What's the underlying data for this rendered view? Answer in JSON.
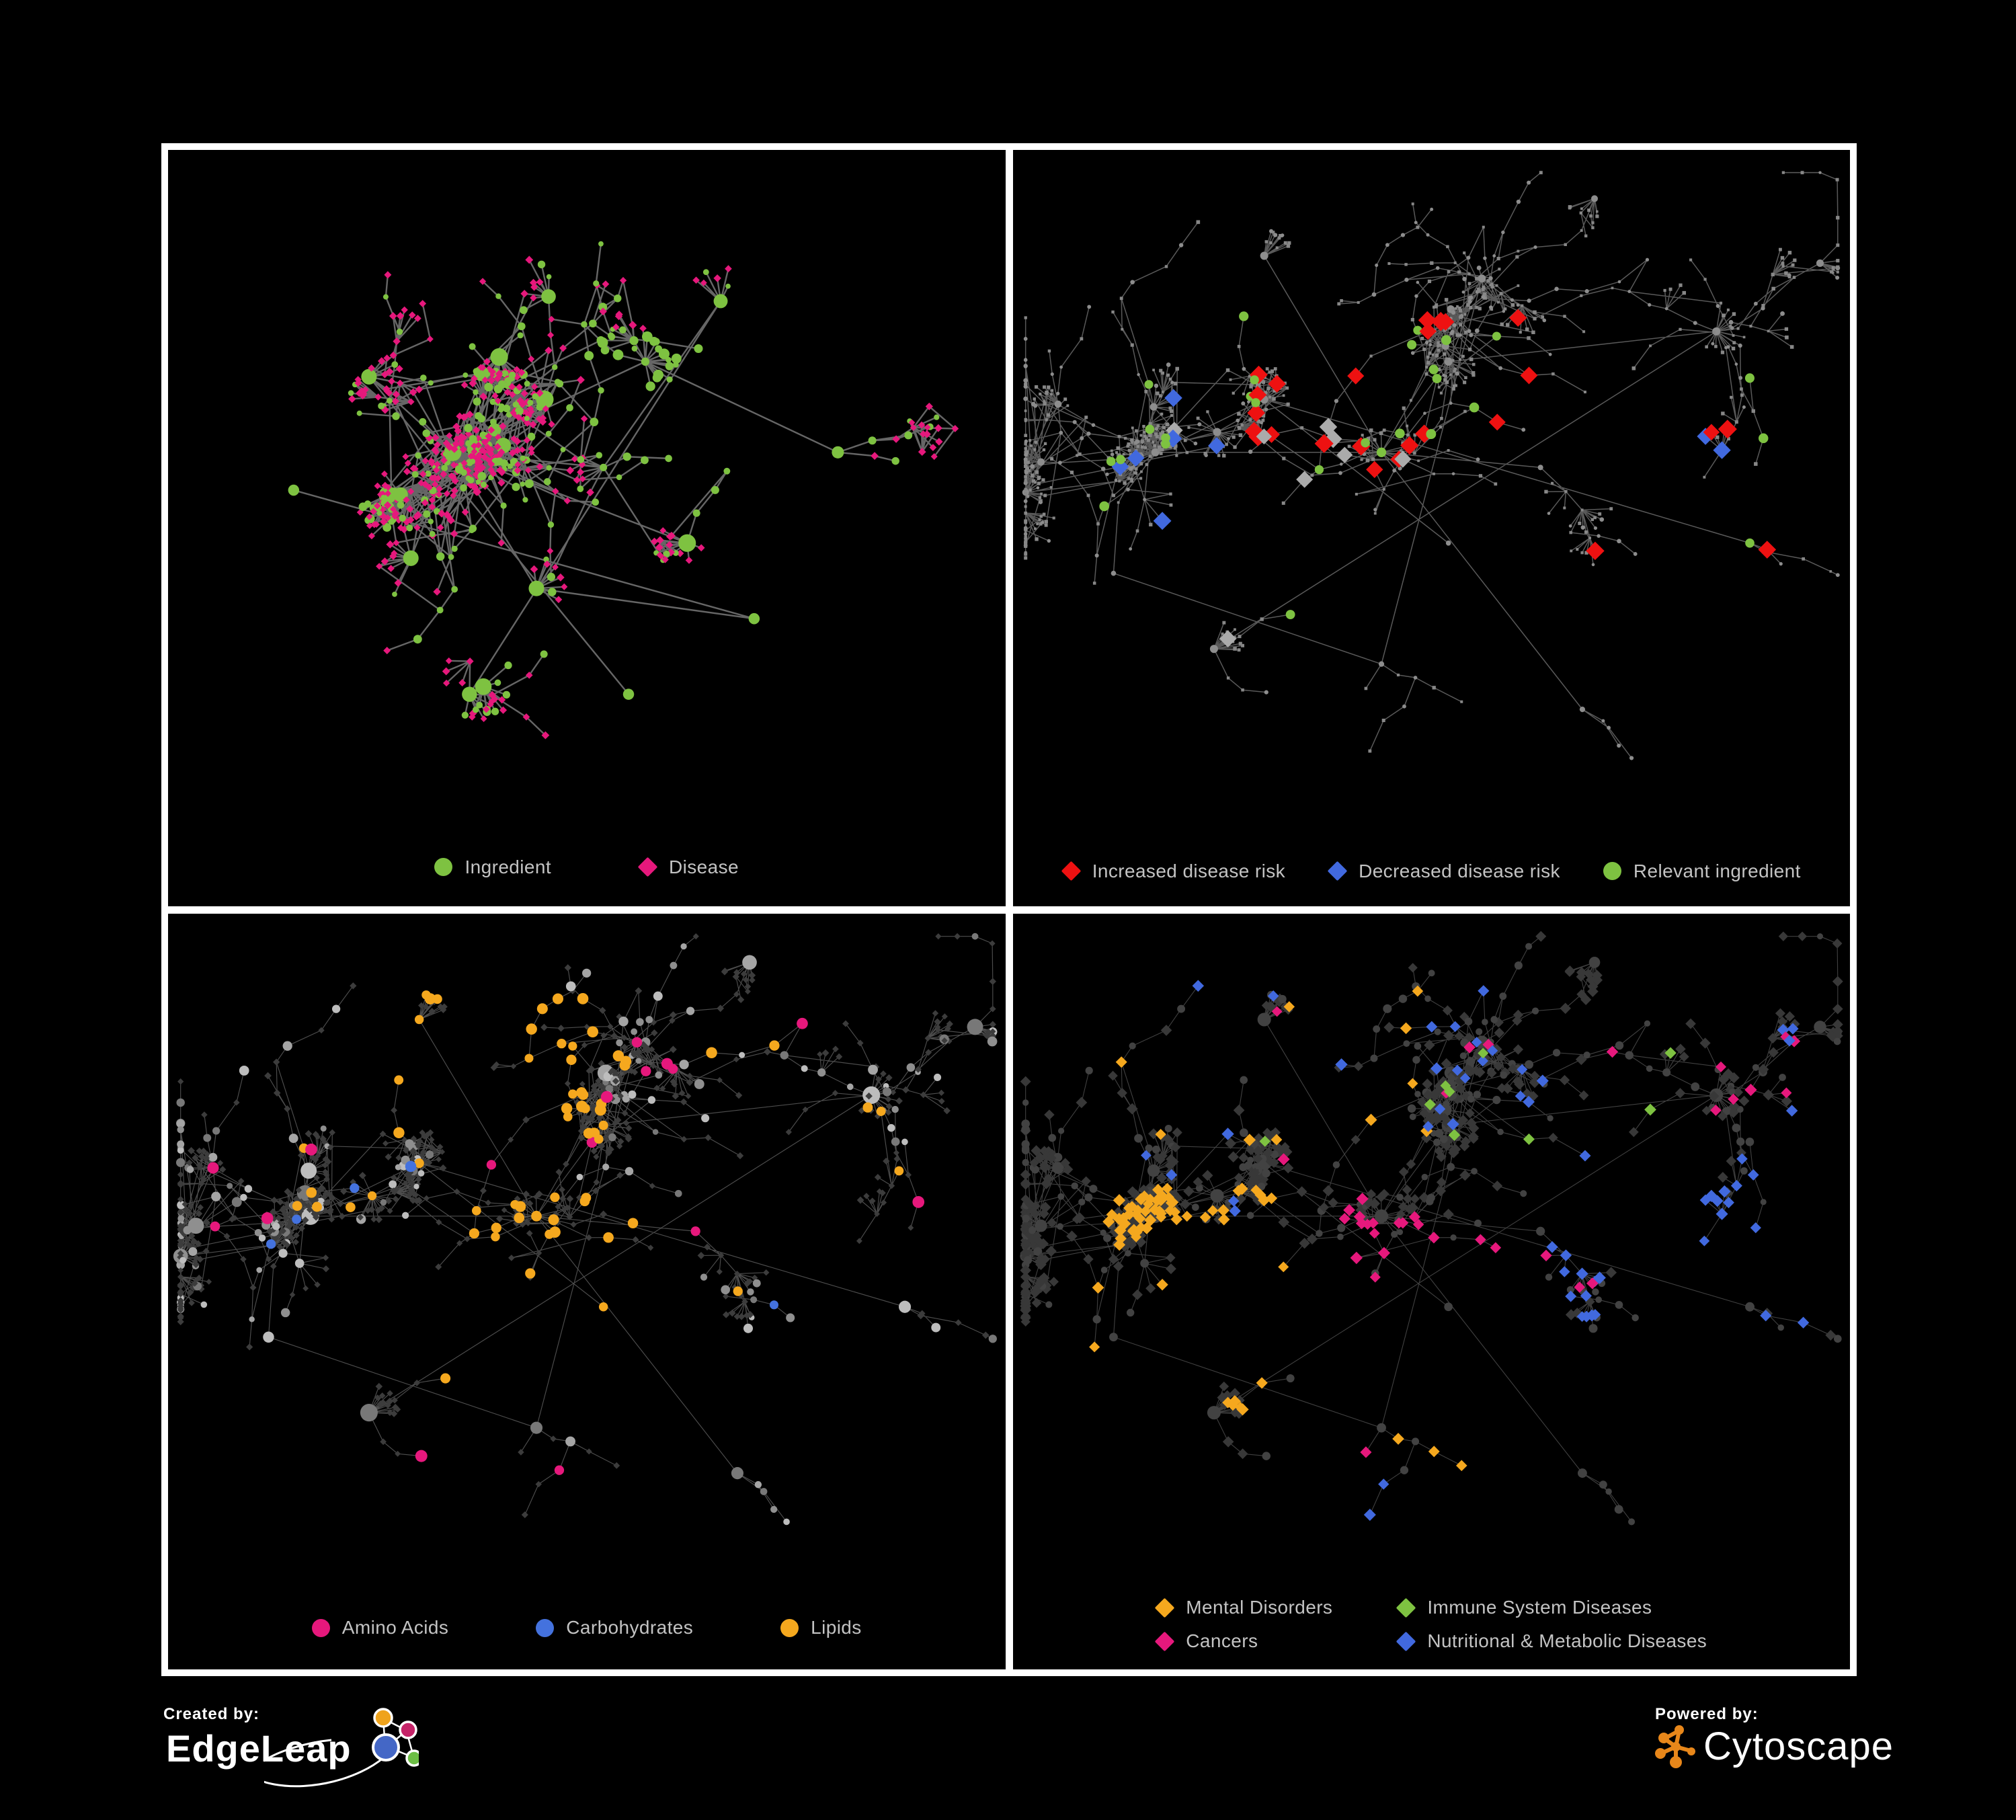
{
  "page": {
    "background": "#000000",
    "frame_color": "#ffffff"
  },
  "footer": {
    "created_by": {
      "label": "Created by:",
      "brand": "EdgeLeap",
      "logo_colors": {
        "orange": "#EFA31C",
        "pink": "#C52368",
        "blue": "#4467C6",
        "green": "#6CBE45",
        "line": "#ffffff"
      }
    },
    "powered_by": {
      "label": "Powered by:",
      "brand": "Cytoscape",
      "logo_color": "#E8871A"
    }
  },
  "layouts": {
    "p1": {
      "seed": 13,
      "nodeCount": 620,
      "step": 31,
      "fanProb": 0.5,
      "fanMax": 8,
      "chainMax": 4,
      "attachBias": 1.8,
      "leafDiseaseProb": 0.72,
      "chainDiseaseProb": 0.5,
      "crossTries": 600,
      "crossMax": 140,
      "crossDistFactor": 5,
      "margin": [
        0.03,
        0.05,
        0.97,
        0.83
      ],
      "hubs": [
        [
          0.34,
          0.4
        ],
        [
          0.45,
          0.33
        ],
        [
          0.52,
          0.42
        ],
        [
          0.57,
          0.28
        ],
        [
          0.29,
          0.54
        ],
        [
          0.44,
          0.58
        ],
        [
          0.62,
          0.52
        ],
        [
          0.24,
          0.3
        ],
        [
          0.66,
          0.2
        ],
        [
          0.7,
          0.62
        ],
        [
          0.36,
          0.72
        ],
        [
          0.55,
          0.72
        ],
        [
          0.15,
          0.45
        ],
        [
          0.8,
          0.4
        ]
      ]
    },
    "main": {
      "seed": 7,
      "nodeCount": 860,
      "step": 27,
      "fanProb": 0.46,
      "fanMax": 11,
      "chainMax": 6,
      "attachBias": 1.6,
      "leafDiseaseProb": 0.8,
      "chainDiseaseProb": 0.55,
      "crossTries": 800,
      "crossMax": 170,
      "crossDistFactor": 5.5,
      "margin": [
        0.015,
        0.03,
        0.985,
        0.855
      ],
      "hubs": [
        [
          0.17,
          0.4
        ],
        [
          0.3,
          0.33
        ],
        [
          0.44,
          0.4
        ],
        [
          0.52,
          0.28
        ],
        [
          0.56,
          0.17
        ],
        [
          0.63,
          0.42
        ],
        [
          0.3,
          0.14
        ],
        [
          0.84,
          0.24
        ],
        [
          0.88,
          0.52
        ],
        [
          0.44,
          0.68
        ],
        [
          0.24,
          0.66
        ],
        [
          0.68,
          0.74
        ],
        [
          0.52,
          0.52
        ],
        [
          0.12,
          0.56
        ]
      ]
    }
  },
  "panels": [
    {
      "name": "ingredient-disease-network",
      "layout": "p1",
      "style_seed": 11,
      "legend": {
        "rows": [
          [
            {
              "label": "Ingredient",
              "shape": "circle",
              "color": "#7EC241"
            },
            {
              "label": "Disease",
              "shape": "diamond",
              "color": "#E6187C"
            }
          ]
        ]
      },
      "style": {
        "edge": {
          "color": "#6b6b6b",
          "width": 2.4,
          "opacity": 0.95
        },
        "ingredient": {
          "shape": "circle",
          "color": "#7EC241",
          "rMin": 3.8,
          "rMax": 6.5,
          "hubR": 13
        },
        "disease": {
          "shape": "diamond",
          "color": "#E6187C",
          "rMin": 3.6,
          "rMax": 4.4
        },
        "overlays": [
          {
            "type": "*",
            "shape": "circle",
            "color": "#7EC241",
            "rMin": 4,
            "rMax": 8,
            "count": 50,
            "region": [
              0.5,
              0.24,
              0.7,
              0.44
            ]
          }
        ]
      }
    },
    {
      "name": "disease-risk-network",
      "layout": "main",
      "style_seed": 21,
      "legend": {
        "rows": [
          [
            {
              "label": "Increased disease risk",
              "shape": "diamond",
              "color": "#EE1111"
            },
            {
              "label": "Decreased disease risk",
              "shape": "diamond",
              "color": "#4169DF"
            },
            {
              "label": "Relevant ingredient",
              "shape": "circle",
              "color": "#7EC241"
            }
          ]
        ]
      },
      "style": {
        "edge": {
          "color": "#6f6f6f",
          "width": 1.5,
          "opacity": 0.8
        },
        "ingredient": {
          "shape": "circle",
          "color": "#8d8d8d",
          "rMin": 2.2,
          "rMax": 3.4,
          "hubR": 6
        },
        "disease": {
          "shape": "square",
          "color": "#878787",
          "rMin": 1.8,
          "rMax": 2.8
        },
        "overlays": [
          {
            "type": "d",
            "shape": "diamond",
            "color": "#EE1111",
            "rMin": 9,
            "rMax": 10.5,
            "count": 22,
            "region": [
              0.28,
              0.22,
              0.72,
              0.62
            ]
          },
          {
            "type": "d",
            "shape": "diamond",
            "color": "#EE1111",
            "rMin": 9,
            "rMax": 10.5,
            "count": 4,
            "region": [
              0.58,
              0.72,
              0.8,
              0.9
            ]
          },
          {
            "type": "d",
            "shape": "diamond",
            "color": "#EE1111",
            "rMin": 9,
            "rMax": 10.5,
            "count": 3,
            "region": [
              0.72,
              0.28,
              0.97,
              0.55
            ]
          },
          {
            "type": "d",
            "shape": "diamond",
            "color": "#4169DF",
            "rMin": 9,
            "rMax": 10,
            "count": 6,
            "region": [
              0.1,
              0.3,
              0.27,
              0.52
            ]
          },
          {
            "type": "d",
            "shape": "diamond",
            "color": "#4169DF",
            "rMin": 9,
            "rMax": 10,
            "count": 2,
            "region": [
              0.82,
              0.28,
              0.95,
              0.4
            ]
          },
          {
            "type": "d",
            "shape": "diamond",
            "color": "#ABABAB",
            "rMin": 8.5,
            "rMax": 10,
            "count": 8,
            "region": [
              0.15,
              0.3,
              0.72,
              0.72
            ]
          },
          {
            "type": "i",
            "shape": "circle",
            "color": "#7EC241",
            "rMin": 6.5,
            "rMax": 7.5,
            "count": 24,
            "region": [
              0.08,
              0.22,
              0.66,
              0.66
            ]
          },
          {
            "type": "i",
            "shape": "circle",
            "color": "#7EC241",
            "rMin": 6.5,
            "rMax": 7.5,
            "count": 3,
            "region": [
              0.7,
              0.3,
              0.95,
              0.75
            ]
          }
        ]
      }
    },
    {
      "name": "nutrient-class-network",
      "layout": "main",
      "style_seed": 31,
      "legend": {
        "rows": [
          [
            {
              "label": "Amino Acids",
              "shape": "circle",
              "color": "#E6187C"
            },
            {
              "label": "Carbohydrates",
              "shape": "circle",
              "color": "#4472DE"
            },
            {
              "label": "Lipids",
              "shape": "circle",
              "color": "#F5A81E"
            }
          ]
        ]
      },
      "style": {
        "edge": {
          "color": "#9a9a9a",
          "width": 1.15,
          "opacity": 0.5
        },
        "ingredient": {
          "shape": "circle",
          "colors": [
            "#8f8f8f",
            "#a5a5a5",
            "#bdbdbd",
            "#787878"
          ],
          "rMin": 4,
          "rMax": 7.5,
          "hubR": 13
        },
        "disease": {
          "shape": "diamond",
          "color": "#3C3C3C",
          "rMin": 3.2,
          "rMax": 4.0
        },
        "overlays": [
          {
            "type": "i",
            "shape": "circle",
            "color": "#F5A81E",
            "rMin": 6.5,
            "rMax": 8.5,
            "count": 30,
            "region": [
              0.26,
              0.1,
              0.52,
              0.3
            ]
          },
          {
            "type": "i",
            "shape": "circle",
            "color": "#F5A81E",
            "rMin": 6.5,
            "rMax": 8.5,
            "count": 26,
            "region": [
              0.32,
              0.36,
              0.6,
              0.62
            ]
          },
          {
            "type": "i",
            "shape": "circle",
            "color": "#F5A81E",
            "rMin": 6.5,
            "rMax": 8.5,
            "count": 16,
            "region": [
              0.15,
              0.15,
              0.92,
              0.88
            ]
          },
          {
            "type": "i",
            "shape": "circle",
            "color": "#4472DE",
            "rMin": 6.5,
            "rMax": 8.5,
            "count": 8,
            "region": [
              0.28,
              0.1,
              0.5,
              0.28
            ]
          },
          {
            "type": "i",
            "shape": "circle",
            "color": "#4472DE",
            "rMin": 6.5,
            "rMax": 8.5,
            "count": 5,
            "region": [
              0.1,
              0.3,
              0.85,
              0.75
            ]
          },
          {
            "type": "i",
            "shape": "circle",
            "color": "#E6187C",
            "rMin": 7,
            "rMax": 9,
            "count": 16,
            "region": [
              0.05,
              0.03,
              0.95,
              0.9
            ]
          }
        ]
      }
    },
    {
      "name": "disease-class-network",
      "layout": "main",
      "style_seed": 41,
      "legend": {
        "grid": true,
        "rows": [
          [
            {
              "label": "Mental Disorders",
              "shape": "diamond",
              "color": "#F5A81E"
            },
            {
              "label": "Immune System Diseases",
              "shape": "diamond",
              "color": "#7EC241"
            }
          ],
          [
            {
              "label": "Cancers",
              "shape": "diamond",
              "color": "#E6187C"
            },
            {
              "label": "Nutritional & Metabolic Diseases",
              "shape": "diamond",
              "color": "#4169DF"
            }
          ]
        ]
      },
      "style": {
        "edge": {
          "color": "#8f8f8f",
          "width": 1.1,
          "opacity": 0.45
        },
        "ingredient": {
          "shape": "circle",
          "color": "#424242",
          "rMin": 4.5,
          "rMax": 6.5,
          "hubR": 10
        },
        "disease": {
          "shape": "diamond",
          "color": "#383838",
          "rMin": 5.2,
          "rMax": 6.2
        },
        "overlays": [
          {
            "type": "d",
            "shape": "diamond",
            "color": "#F5A81E",
            "rMin": 5.8,
            "rMax": 6.8,
            "count": 65,
            "region": [
              0.08,
              0.36,
              0.33,
              0.7
            ]
          },
          {
            "type": "d",
            "shape": "diamond",
            "color": "#F5A81E",
            "rMin": 5.8,
            "rMax": 6.8,
            "count": 10,
            "region": [
              0.12,
              0.06,
              0.5,
              0.3
            ]
          },
          {
            "type": "d",
            "shape": "diamond",
            "color": "#F5A81E",
            "rMin": 5.8,
            "rMax": 6.8,
            "count": 8,
            "region": [
              0.45,
              0.65,
              0.85,
              0.95
            ]
          },
          {
            "type": "d",
            "shape": "diamond",
            "color": "#E6187C",
            "rMin": 5.8,
            "rMax": 6.8,
            "count": 42,
            "region": [
              0.36,
              0.4,
              0.64,
              0.75
            ]
          },
          {
            "type": "d",
            "shape": "diamond",
            "color": "#E6187C",
            "rMin": 5.8,
            "rMax": 6.8,
            "count": 7,
            "region": [
              0.8,
              0.16,
              0.95,
              0.3
            ]
          },
          {
            "type": "d",
            "shape": "diamond",
            "color": "#E6187C",
            "rMin": 5.8,
            "rMax": 6.8,
            "count": 10,
            "region": [
              0.28,
              0.08,
              0.75,
              0.95
            ]
          },
          {
            "type": "d",
            "shape": "diamond",
            "color": "#4169DF",
            "rMin": 5.8,
            "rMax": 6.8,
            "count": 26,
            "region": [
              0.55,
              0.32,
              0.97,
              0.78
            ]
          },
          {
            "type": "d",
            "shape": "diamond",
            "color": "#4169DF",
            "rMin": 5.8,
            "rMax": 6.8,
            "count": 22,
            "region": [
              0.28,
              0.04,
              0.95,
              0.3
            ]
          },
          {
            "type": "d",
            "shape": "diamond",
            "color": "#4169DF",
            "rMin": 5.8,
            "rMax": 6.8,
            "count": 10,
            "region": [
              0.3,
              0.75,
              0.92,
              0.97
            ]
          },
          {
            "type": "d",
            "shape": "diamond",
            "color": "#4169DF",
            "rMin": 5.8,
            "rMax": 6.8,
            "count": 6,
            "region": [
              0.05,
              0.05,
              0.28,
              0.4
            ]
          },
          {
            "type": "d",
            "shape": "diamond",
            "color": "#7EC241",
            "rMin": 5.8,
            "rMax": 6.8,
            "count": 9,
            "region": [
              0.3,
              0.15,
              0.85,
              0.8
            ]
          }
        ]
      }
    }
  ]
}
